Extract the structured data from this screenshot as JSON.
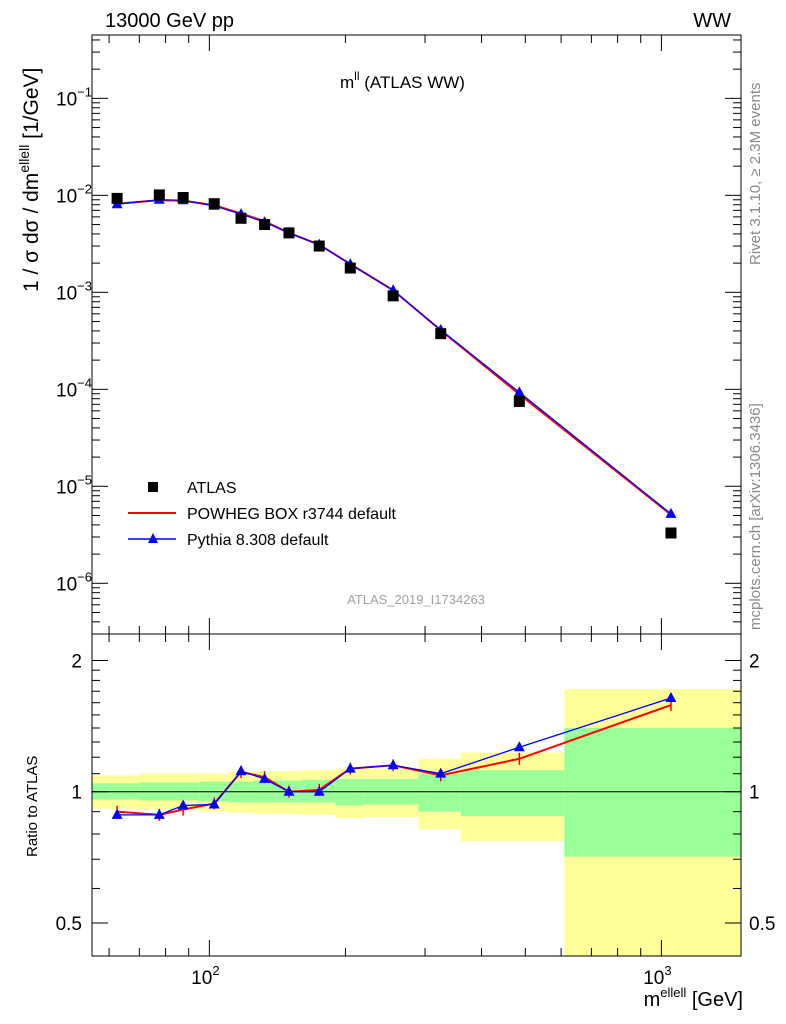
{
  "header": {
    "left": "13000 GeV pp",
    "right": "WW"
  },
  "side_labels": {
    "rivet": "Rivet 3.1.10, ≥ 2.3M events",
    "mcplots": "mcplots.cern.ch [arXiv:1306.3436]"
  },
  "colors": {
    "data": "#000000",
    "powheg": "#ff0000",
    "pythia": "#0000ff",
    "band_yellow": "#ffff99",
    "band_green": "#99ff99",
    "annotation": "#a0a0a0"
  },
  "chart_data": [
    {
      "type": "scatter",
      "title_main": "m",
      "title_sup": "ll",
      "title_rest": " (ATLAS WW)",
      "ylabel": "1 / σ  dσ / dm",
      "ylabel_sup": "ellell",
      "ylabel_unit": " [1/GeV]",
      "yscale": "log",
      "xscale": "log",
      "xlim": [
        55,
        1500
      ],
      "ylim": [
        3e-07,
        0.45
      ],
      "y_tick_labels": [
        {
          "base": "10",
          "exp": "−6",
          "value": 1e-06
        },
        {
          "base": "10",
          "exp": "−5",
          "value": 1e-05
        },
        {
          "base": "10",
          "exp": "−4",
          "value": 0.0001
        },
        {
          "base": "10",
          "exp": "−3",
          "value": 0.001
        },
        {
          "base": "10",
          "exp": "−2",
          "value": 0.01
        },
        {
          "base": "10",
          "exp": "−1",
          "value": 0.1
        }
      ],
      "annotation": "ATLAS_2019_I1734263",
      "legend_position": "bottom-left",
      "x": [
        62.5,
        77.5,
        87.5,
        102.5,
        117.5,
        132.5,
        150,
        175,
        205,
        255,
        325,
        485,
        1050
      ],
      "series": [
        {
          "name": "ATLAS",
          "marker": "square",
          "values": [
            0.0093,
            0.0101,
            0.0095,
            0.0082,
            0.0058,
            0.005,
            0.0041,
            0.003,
            0.00178,
            0.00092,
            0.000375,
            7.5e-05,
            3.3e-06
          ]
        },
        {
          "name": "POWHEG BOX r3744 default",
          "marker": "line",
          "values": [
            0.0082,
            0.0089,
            0.0088,
            0.0079,
            0.0065,
            0.0054,
            0.0041,
            0.0031,
            0.00196,
            0.00105,
            0.000405,
            8.9e-05,
            5.1e-06
          ]
        },
        {
          "name": "Pythia 8.308 default",
          "marker": "triangle",
          "values": [
            0.0081,
            0.009,
            0.0089,
            0.0078,
            0.0064,
            0.0053,
            0.0041,
            0.0031,
            0.00195,
            0.00105,
            0.00041,
            9.3e-05,
            5.2e-06
          ]
        }
      ]
    },
    {
      "type": "scatter",
      "ylabel": "Ratio to ATLAS",
      "xlabel": "m",
      "xlabel_sup": "ellell",
      "xlabel_unit": " [GeV]",
      "yscale": "log",
      "xscale": "log",
      "xlim": [
        55,
        1500
      ],
      "ylim": [
        0.42,
        2.3
      ],
      "y_ticks": [
        {
          "value": 0.5,
          "label": "0.5"
        },
        {
          "value": 1,
          "label": "1"
        },
        {
          "value": 2,
          "label": "2"
        }
      ],
      "x_ticks": [
        {
          "value": 100,
          "base": "10",
          "exp": "2"
        },
        {
          "value": 1000,
          "base": "10",
          "exp": "3"
        }
      ],
      "bins": [
        {
          "lo": 55,
          "hi": 70,
          "green": [
            0.96,
            1.045
          ],
          "yellow": [
            0.915,
            1.09
          ]
        },
        {
          "lo": 70,
          "hi": 85,
          "green": [
            0.955,
            1.05
          ],
          "yellow": [
            0.91,
            1.1
          ]
        },
        {
          "lo": 85,
          "hi": 95,
          "green": [
            0.955,
            1.05
          ],
          "yellow": [
            0.91,
            1.1
          ]
        },
        {
          "lo": 95,
          "hi": 110,
          "green": [
            0.95,
            1.055
          ],
          "yellow": [
            0.9,
            1.1
          ]
        },
        {
          "lo": 110,
          "hi": 125,
          "green": [
            0.945,
            1.055
          ],
          "yellow": [
            0.895,
            1.11
          ]
        },
        {
          "lo": 125,
          "hi": 140,
          "green": [
            0.945,
            1.06
          ],
          "yellow": [
            0.89,
            1.115
          ]
        },
        {
          "lo": 140,
          "hi": 160,
          "green": [
            0.945,
            1.06
          ],
          "yellow": [
            0.89,
            1.115
          ]
        },
        {
          "lo": 160,
          "hi": 190,
          "green": [
            0.945,
            1.065
          ],
          "yellow": [
            0.885,
            1.12
          ]
        },
        {
          "lo": 190,
          "hi": 220,
          "green": [
            0.93,
            1.07
          ],
          "yellow": [
            0.87,
            1.13
          ]
        },
        {
          "lo": 220,
          "hi": 290,
          "green": [
            0.935,
            1.07
          ],
          "yellow": [
            0.875,
            1.13
          ]
        },
        {
          "lo": 290,
          "hi": 360,
          "green": [
            0.9,
            1.1
          ],
          "yellow": [
            0.82,
            1.19
          ]
        },
        {
          "lo": 360,
          "hi": 610,
          "green": [
            0.88,
            1.12
          ],
          "yellow": [
            0.77,
            1.23
          ]
        },
        {
          "lo": 610,
          "hi": 1500,
          "green": [
            0.71,
            1.4
          ],
          "yellow": [
            0.42,
            1.72
          ]
        }
      ],
      "x": [
        62.5,
        77.5,
        87.5,
        102.5,
        117.5,
        132.5,
        150,
        175,
        205,
        255,
        325,
        485,
        1050
      ],
      "series": [
        {
          "name": "ATLAS",
          "values": [
            1,
            1,
            1,
            1,
            1,
            1,
            1,
            1,
            1,
            1,
            1,
            1,
            1
          ]
        },
        {
          "name": "POWHEG BOX r3744 default",
          "values": [
            0.9,
            0.885,
            0.91,
            0.94,
            1.11,
            1.08,
            1.0,
            1.01,
            1.13,
            1.15,
            1.09,
            1.19,
            1.58
          ]
        },
        {
          "name": "Pythia 8.308 default",
          "values": [
            0.885,
            0.885,
            0.93,
            0.935,
            1.115,
            1.07,
            1.0,
            1.0,
            1.13,
            1.15,
            1.1,
            1.265,
            1.64
          ]
        }
      ]
    }
  ]
}
